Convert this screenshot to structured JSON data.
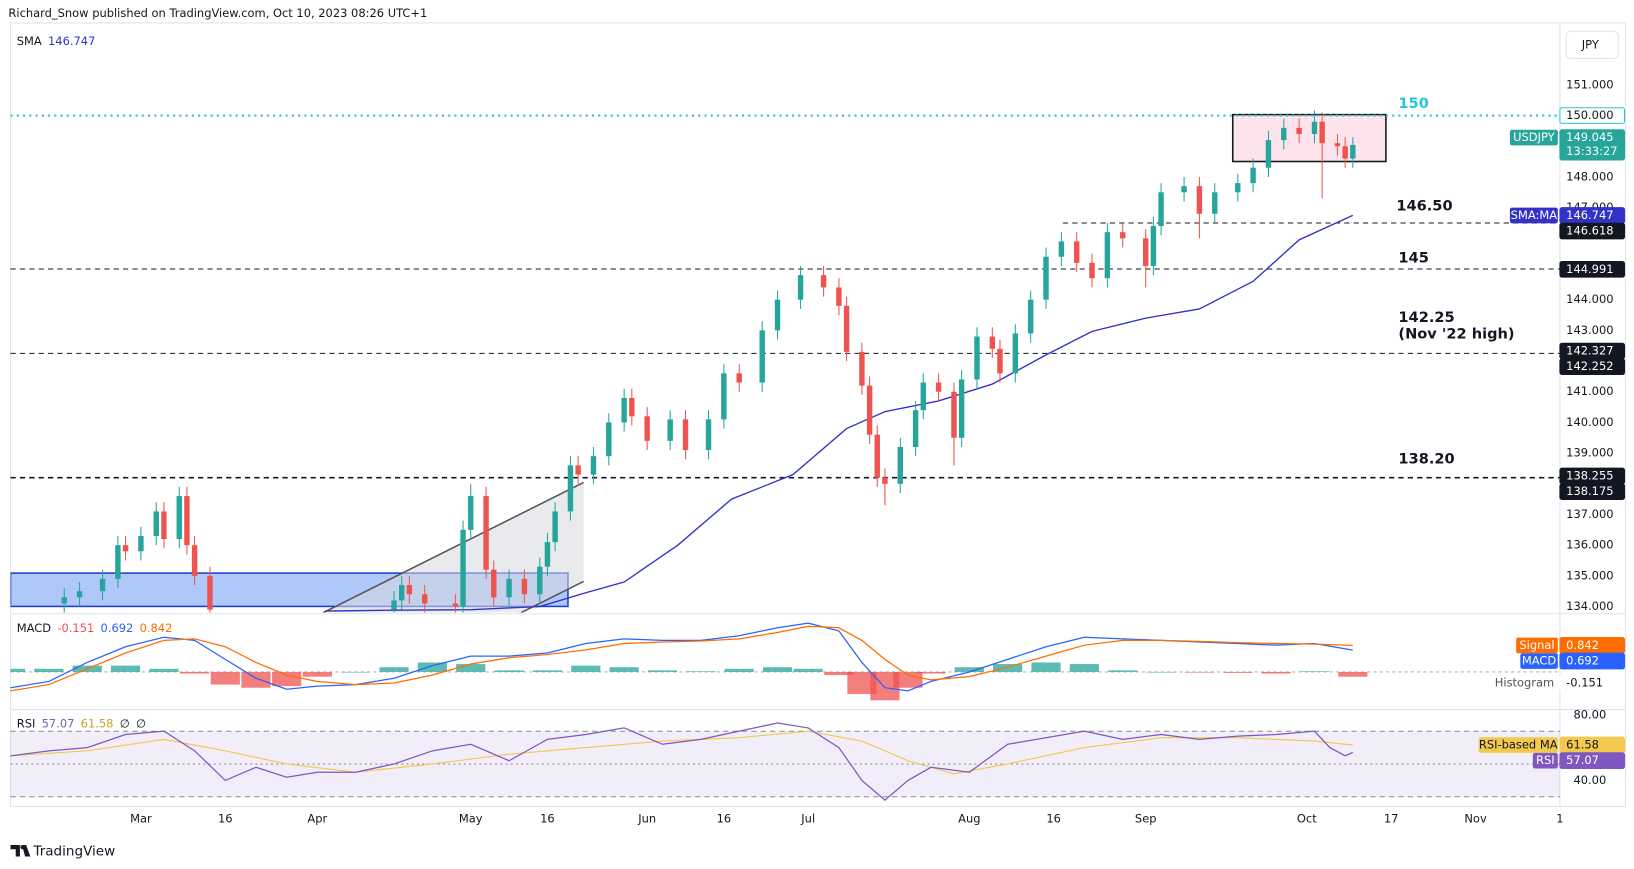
{
  "header": "Richard_Snow published on TradingView.com, Oct 10, 2023 08:26 UTC+1",
  "footer": "TradingView",
  "chart_data": {
    "type": "candlestick",
    "currency": "JPY",
    "symbol": "USDJPY",
    "countdown": "13:33:27",
    "xlim": [
      0,
      202
    ],
    "xticks": [
      {
        "value": 17,
        "label": "Mar"
      },
      {
        "value": 28,
        "label": "16"
      },
      {
        "value": 40,
        "label": "Apr"
      },
      {
        "value": 60,
        "label": "May"
      },
      {
        "value": 70,
        "label": "16"
      },
      {
        "value": 83,
        "label": "Jun"
      },
      {
        "value": 93,
        "label": "16"
      },
      {
        "value": 104,
        "label": "Jul"
      },
      {
        "value": 125,
        "label": "Aug"
      },
      {
        "value": 136,
        "label": "16"
      },
      {
        "value": 148,
        "label": "Sep"
      },
      {
        "value": 169,
        "label": "Oct"
      },
      {
        "value": 180,
        "label": "17"
      },
      {
        "value": 191,
        "label": "Nov"
      },
      {
        "value": 202,
        "label": "1"
      }
    ],
    "ylim": [
      133.8,
      153.02
    ],
    "yticks": [
      {
        "value": 151,
        "label": "151.000"
      },
      {
        "value": 148,
        "label": "148.000"
      },
      {
        "value": 147,
        "label": "147.000"
      },
      {
        "value": 144,
        "label": "144.000"
      },
      {
        "value": 143,
        "label": "143.000"
      },
      {
        "value": 141,
        "label": "141.000"
      },
      {
        "value": 140,
        "label": "140.000"
      },
      {
        "value": 139,
        "label": "139.000"
      },
      {
        "value": 137,
        "label": "137.000"
      },
      {
        "value": 136,
        "label": "136.000"
      },
      {
        "value": 135,
        "label": "135.000"
      },
      {
        "value": 134,
        "label": "134.000"
      }
    ],
    "up_color": "#26a69a",
    "down_color": "#ef5350",
    "candles": {
      "x": [
        7,
        9,
        12,
        14,
        15,
        17,
        19,
        20,
        22,
        23,
        24,
        26,
        50,
        51,
        52,
        54,
        58,
        59,
        60,
        62,
        63,
        65,
        67,
        69,
        70,
        71,
        73,
        74,
        76,
        78,
        80,
        81,
        83,
        86,
        88,
        91,
        93,
        95,
        98,
        100,
        103,
        106,
        108,
        109,
        111,
        112,
        113,
        114,
        116,
        118,
        119,
        121,
        123,
        124,
        126,
        128,
        129,
        131,
        133,
        135,
        137,
        139,
        141,
        143,
        145,
        148,
        149,
        150,
        153,
        155,
        157,
        160,
        162,
        164,
        166,
        168,
        170,
        171,
        173,
        174,
        175
      ],
      "open": [
        134.1,
        134.3,
        134.5,
        134.9,
        136.0,
        135.8,
        136.3,
        137.1,
        136.2,
        137.6,
        136.0,
        135.0,
        133.9,
        134.2,
        134.7,
        134.4,
        134.1,
        134.0,
        136.5,
        137.6,
        135.2,
        134.3,
        134.9,
        134.4,
        135.3,
        136.1,
        137.1,
        138.6,
        138.3,
        138.9,
        140.0,
        140.8,
        140.2,
        139.4,
        140.1,
        139.1,
        140.1,
        141.6,
        141.3,
        143.0,
        144.0,
        144.8,
        144.4,
        143.8,
        142.3,
        141.2,
        139.6,
        138.2,
        138.0,
        139.2,
        140.4,
        141.3,
        141.0,
        139.5,
        141.4,
        142.8,
        142.4,
        141.6,
        142.9,
        144.0,
        145.4,
        145.9,
        145.2,
        144.7,
        146.2,
        146.0,
        145.1,
        146.4,
        147.5,
        147.7,
        146.8,
        147.5,
        147.8,
        148.3,
        149.2,
        149.6,
        149.4,
        149.8,
        149.1,
        149.0,
        148.6
      ],
      "high": [
        134.6,
        134.8,
        135.2,
        136.3,
        136.3,
        136.6,
        137.4,
        137.4,
        137.9,
        137.9,
        136.3,
        135.3,
        134.5,
        135.0,
        135.0,
        134.7,
        134.4,
        136.8,
        138.0,
        137.9,
        135.5,
        135.2,
        135.2,
        135.6,
        136.4,
        137.4,
        138.9,
        138.9,
        139.2,
        140.3,
        141.1,
        141.1,
        140.5,
        140.4,
        140.4,
        140.4,
        141.9,
        141.9,
        143.3,
        144.3,
        145.1,
        145.1,
        144.7,
        144.1,
        142.6,
        141.5,
        139.9,
        138.5,
        139.5,
        140.7,
        141.6,
        141.6,
        141.3,
        141.7,
        143.1,
        143.1,
        142.7,
        143.2,
        144.3,
        145.7,
        146.2,
        146.2,
        145.5,
        146.5,
        146.5,
        146.3,
        146.7,
        147.8,
        148.0,
        148.0,
        147.8,
        148.1,
        148.6,
        149.5,
        149.9,
        149.9,
        150.16,
        150.1,
        149.4,
        149.3,
        149.3
      ],
      "low": [
        133.8,
        134.0,
        134.2,
        134.6,
        135.5,
        135.5,
        136.0,
        135.9,
        135.9,
        135.7,
        134.7,
        133.6,
        133.6,
        133.9,
        134.1,
        133.8,
        133.7,
        133.7,
        136.2,
        134.9,
        134.0,
        134.0,
        134.1,
        134.1,
        135.0,
        135.8,
        136.8,
        138.0,
        138.0,
        138.6,
        139.7,
        139.9,
        139.1,
        139.1,
        138.8,
        138.8,
        139.8,
        141.0,
        141.0,
        142.7,
        143.7,
        144.1,
        143.5,
        142.0,
        140.9,
        139.3,
        137.9,
        137.3,
        137.7,
        138.9,
        140.1,
        140.7,
        138.6,
        139.2,
        141.1,
        142.1,
        141.3,
        141.3,
        142.6,
        143.7,
        145.1,
        144.9,
        144.4,
        144.4,
        145.7,
        144.4,
        144.8,
        146.1,
        147.2,
        146.0,
        146.5,
        147.2,
        147.5,
        148.0,
        148.9,
        149.1,
        149.1,
        147.3,
        148.7,
        148.3,
        148.3
      ],
      "close": [
        134.3,
        134.5,
        134.9,
        136.0,
        135.8,
        136.3,
        137.1,
        136.2,
        137.6,
        136.0,
        135.0,
        133.9,
        134.2,
        134.7,
        134.4,
        134.1,
        134.0,
        136.5,
        137.6,
        135.2,
        134.3,
        134.9,
        134.4,
        135.3,
        136.1,
        137.1,
        138.6,
        138.3,
        138.9,
        140.0,
        140.8,
        140.2,
        139.4,
        140.1,
        139.1,
        140.1,
        141.6,
        141.3,
        143.0,
        144.0,
        144.8,
        144.4,
        143.8,
        142.3,
        141.2,
        139.6,
        138.2,
        138.0,
        139.2,
        140.4,
        141.3,
        141.0,
        139.5,
        141.4,
        142.8,
        142.4,
        141.6,
        142.9,
        144.0,
        145.4,
        145.9,
        145.2,
        144.7,
        146.2,
        146.0,
        145.1,
        146.4,
        147.5,
        147.7,
        146.8,
        147.5,
        147.8,
        148.3,
        149.2,
        149.6,
        149.4,
        149.8,
        149.1,
        149.0,
        148.6,
        149.045
      ]
    },
    "sma": {
      "name": "SMA",
      "tag": "SMA:MA",
      "color": "#3232c8",
      "x": [
        41,
        50,
        60,
        69,
        75,
        80,
        87,
        94,
        102,
        109,
        114,
        121,
        128,
        135,
        141,
        148,
        155,
        162,
        168,
        175
      ],
      "values": [
        133.85,
        133.88,
        133.9,
        134.0,
        134.45,
        134.8,
        136.0,
        137.5,
        138.3,
        139.8,
        140.35,
        140.7,
        141.25,
        142.2,
        142.97,
        143.4,
        143.7,
        144.6,
        145.95,
        146.747
      ]
    },
    "levels": [
      {
        "value": 150,
        "label": "150",
        "tag": "150.000",
        "color": "#26c6da",
        "style": "dotted"
      },
      {
        "value": 146.5,
        "label": "146.50",
        "color": "#131722",
        "style": "dashed"
      },
      {
        "value": 145,
        "label": "145",
        "color": "#131722",
        "style": "dashed"
      },
      {
        "value": 142.25,
        "label": "142.25",
        "color": "#131722",
        "style": "dashed"
      },
      {
        "value": 138.2,
        "label": "138.20",
        "color": "#131722",
        "style": "dashed-bold"
      }
    ],
    "level_note": "(Nov '22 high)",
    "line_tags": [
      146.618,
      144.991,
      142.327,
      142.252,
      138.255,
      138.175
    ],
    "macd": {
      "name": "MACD",
      "ylim": [
        -1.16,
        1.78
      ],
      "x": [
        0,
        5,
        10,
        15,
        20,
        24,
        28,
        32,
        36,
        40,
        45,
        50,
        55,
        60,
        65,
        70,
        75,
        80,
        85,
        90,
        95,
        100,
        104,
        108,
        111,
        114,
        117,
        120,
        125,
        130,
        135,
        140,
        145,
        150,
        155,
        160,
        165,
        170,
        175
      ],
      "histogram": {
        "name": "Histogram",
        "up_color": "#26a69a",
        "down_color": "#ef5350",
        "values": [
          0.1,
          0.1,
          0.2,
          0.2,
          0.1,
          -0.05,
          -0.4,
          -0.5,
          -0.45,
          -0.15,
          0.0,
          0.15,
          0.3,
          0.25,
          0.05,
          0.05,
          0.2,
          0.15,
          0.05,
          0.02,
          0.1,
          0.15,
          0.1,
          -0.1,
          -0.7,
          -0.9,
          -0.5,
          -0.05,
          0.15,
          0.25,
          0.3,
          0.25,
          0.05,
          0.0,
          -0.02,
          -0.03,
          -0.05,
          0.02,
          -0.151
        ]
      },
      "macd": {
        "name": "MACD",
        "color": "#2962ff",
        "values": [
          -0.5,
          -0.3,
          0.3,
          0.8,
          1.1,
          1.0,
          0.4,
          -0.2,
          -0.55,
          -0.45,
          -0.4,
          -0.2,
          0.2,
          0.5,
          0.5,
          0.6,
          0.9,
          1.05,
          1.0,
          1.0,
          1.15,
          1.4,
          1.55,
          1.3,
          0.3,
          -0.5,
          -0.6,
          -0.3,
          0.0,
          0.4,
          0.8,
          1.1,
          1.05,
          1.0,
          0.95,
          0.9,
          0.85,
          0.9,
          0.692
        ]
      },
      "signal": {
        "name": "Signal",
        "color": "#ff6d00",
        "values": [
          -0.6,
          -0.4,
          0.1,
          0.6,
          1.0,
          1.05,
          0.8,
          0.3,
          -0.1,
          -0.3,
          -0.4,
          -0.35,
          -0.1,
          0.25,
          0.45,
          0.55,
          0.7,
          0.9,
          0.95,
          0.98,
          1.05,
          1.25,
          1.45,
          1.4,
          1.0,
          0.4,
          -0.1,
          -0.25,
          -0.15,
          0.15,
          0.5,
          0.85,
          1.0,
          1.0,
          0.97,
          0.93,
          0.9,
          0.88,
          0.842
        ]
      }
    },
    "rsi": {
      "name": "RSI",
      "color": "#7e57c2",
      "ylim": [
        25.4,
        81.9
      ],
      "yticks": [
        {
          "value": 80,
          "label": "80.00"
        },
        {
          "value": 40,
          "label": "40.00"
        }
      ],
      "levels": [
        70,
        50,
        30
      ],
      "extra": [
        "∅",
        "∅"
      ],
      "x": [
        0,
        5,
        10,
        15,
        20,
        24,
        28,
        32,
        36,
        40,
        45,
        50,
        55,
        60,
        65,
        70,
        75,
        80,
        85,
        90,
        95,
        100,
        104,
        108,
        111,
        114,
        117,
        120,
        125,
        130,
        135,
        140,
        145,
        150,
        155,
        160,
        165,
        170,
        172,
        174,
        175
      ],
      "values": [
        55,
        58,
        60,
        68,
        70,
        58,
        40,
        48,
        42,
        45,
        45,
        50,
        58,
        62,
        52,
        65,
        68,
        72,
        62,
        65,
        70,
        75,
        72,
        60,
        40,
        28,
        40,
        48,
        45,
        62,
        66,
        70,
        65,
        68,
        65,
        67,
        68,
        70,
        60,
        55,
        57.07
      ],
      "ma": {
        "name": "RSI-based MA",
        "color": "#f2c94c",
        "x": [
          0,
          10,
          20,
          28,
          36,
          45,
          55,
          65,
          75,
          85,
          95,
          104,
          111,
          117,
          123,
          130,
          140,
          150,
          160,
          170,
          175
        ],
        "values": [
          55,
          58,
          65,
          58,
          50,
          45,
          50,
          56,
          60,
          64,
          66,
          70,
          64,
          52,
          44,
          50,
          60,
          66,
          66,
          64,
          61.58
        ]
      }
    }
  }
}
